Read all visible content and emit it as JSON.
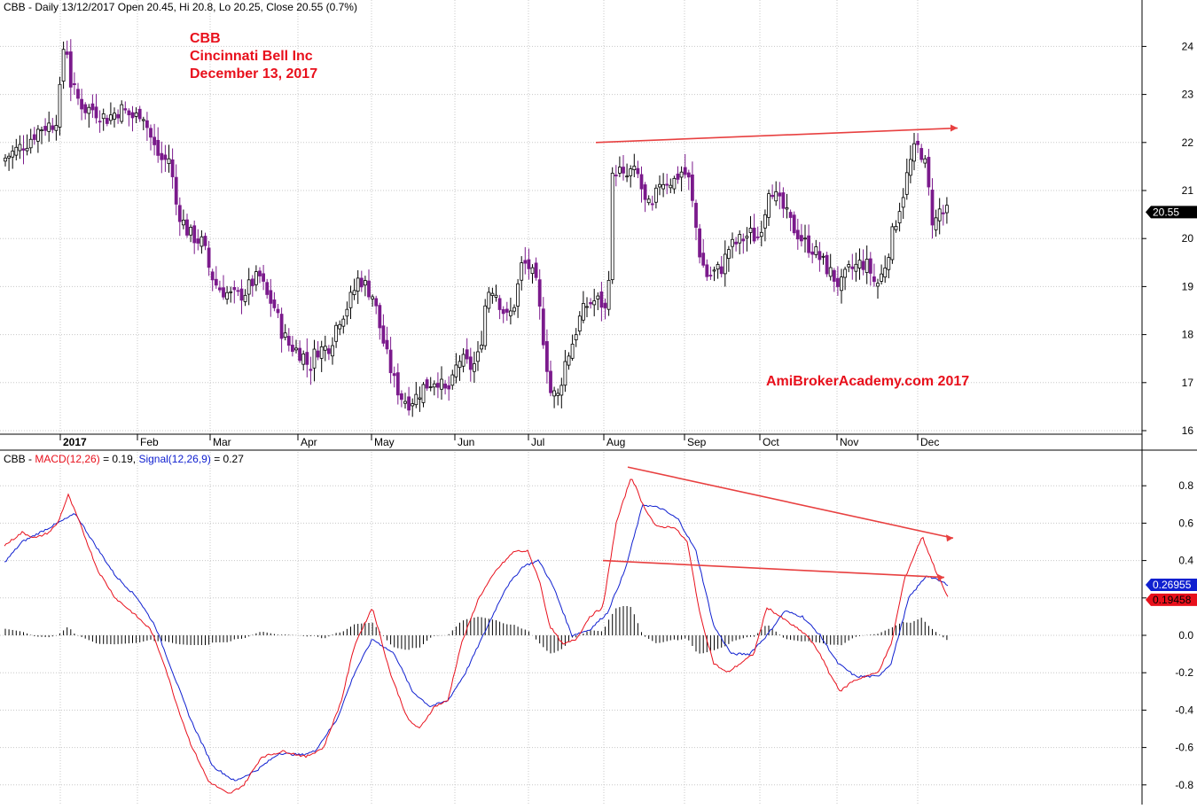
{
  "price_header": {
    "symbol": "CBB",
    "info": "Daily 13/12/2017 Open 20.45, Hi 20.8, Lo 20.25, Close 20.55 (0.7%)"
  },
  "title": {
    "line1": "CBB",
    "line2": "Cincinnati Bell Inc",
    "line3": "December 13, 2017"
  },
  "watermark": "AmiBrokerAcademy.com  2017",
  "macd_header": {
    "symbol": "CBB",
    "macd_label": "MACD(12,26)",
    "macd_value": " = 0.19,",
    "signal_label": "Signal(12,26,9)",
    "signal_value": " = 0.27"
  },
  "colors": {
    "up_candle": "#ffffff",
    "down_candle": "#7b1a8c",
    "macd_line": "#e8101c",
    "signal_line": "#1020d0",
    "histogram": "#000000",
    "trend_line": "#e84040",
    "grid": "#c8c8c8"
  },
  "chart_data": [
    {
      "type": "candlestick",
      "x_axis": {
        "year_label": "2017",
        "months": [
          "Feb",
          "Mar",
          "Apr",
          "May",
          "Jun",
          "Jul",
          "Aug",
          "Sep",
          "Oct",
          "Nov",
          "Dec"
        ]
      },
      "y_ticks": [
        16,
        17,
        18,
        19,
        20,
        21,
        22,
        23,
        24
      ],
      "ylim": [
        15.8,
        24.9
      ],
      "last_price_label": "20.55",
      "last_close": 20.55,
      "grid": true,
      "close_path": [
        [
          0,
          21.6
        ],
        [
          15,
          21.8
        ],
        [
          30,
          22.0
        ],
        [
          45,
          22.3
        ],
        [
          60,
          22.4
        ],
        [
          66,
          22.6
        ],
        [
          70,
          23.8
        ],
        [
          74,
          24.2
        ],
        [
          80,
          23.2
        ],
        [
          88,
          22.9
        ],
        [
          96,
          22.7
        ],
        [
          104,
          22.7
        ],
        [
          112,
          22.6
        ],
        [
          120,
          22.5
        ],
        [
          128,
          22.6
        ],
        [
          136,
          22.7
        ],
        [
          144,
          22.6
        ],
        [
          152,
          22.5
        ],
        [
          160,
          22.7
        ],
        [
          168,
          22.2
        ],
        [
          176,
          21.8
        ],
        [
          184,
          21.6
        ],
        [
          192,
          21.7
        ],
        [
          197,
          20.8
        ],
        [
          205,
          20.4
        ],
        [
          213,
          20.1
        ],
        [
          221,
          20.0
        ],
        [
          229,
          19.9
        ],
        [
          237,
          19.3
        ],
        [
          245,
          19.0
        ],
        [
          253,
          18.9
        ],
        [
          261,
          18.8
        ],
        [
          269,
          18.8
        ],
        [
          277,
          18.9
        ],
        [
          285,
          19.1
        ],
        [
          293,
          19.2
        ],
        [
          301,
          18.8
        ],
        [
          309,
          18.6
        ],
        [
          317,
          18.1
        ],
        [
          325,
          17.8
        ],
        [
          333,
          17.7
        ],
        [
          341,
          17.6
        ],
        [
          349,
          17.3
        ],
        [
          357,
          17.7
        ],
        [
          365,
          17.7
        ],
        [
          373,
          17.8
        ],
        [
          381,
          18.3
        ],
        [
          389,
          18.5
        ],
        [
          397,
          18.8
        ],
        [
          405,
          19.2
        ],
        [
          413,
          19.0
        ],
        [
          421,
          18.8
        ],
        [
          429,
          18.1
        ],
        [
          437,
          17.5
        ],
        [
          445,
          17.0
        ],
        [
          453,
          16.7
        ],
        [
          461,
          16.6
        ],
        [
          469,
          16.7
        ],
        [
          477,
          16.9
        ],
        [
          485,
          17.0
        ],
        [
          493,
          17.1
        ],
        [
          501,
          16.8
        ],
        [
          509,
          16.9
        ],
        [
          517,
          17.5
        ],
        [
          525,
          17.4
        ],
        [
          533,
          17.3
        ],
        [
          541,
          17.6
        ],
        [
          549,
          18.9
        ],
        [
          557,
          19.0
        ],
        [
          565,
          18.6
        ],
        [
          573,
          18.3
        ],
        [
          581,
          18.7
        ],
        [
          589,
          19.5
        ],
        [
          597,
          19.4
        ],
        [
          605,
          19.0
        ],
        [
          613,
          17.9
        ],
        [
          621,
          16.8
        ],
        [
          629,
          16.7
        ],
        [
          637,
          17.4
        ],
        [
          645,
          17.8
        ],
        [
          653,
          18.3
        ],
        [
          661,
          18.6
        ],
        [
          669,
          18.7
        ],
        [
          677,
          18.7
        ],
        [
          685,
          18.4
        ],
        [
          690,
          21.2
        ],
        [
          696,
          21.5
        ],
        [
          704,
          21.2
        ],
        [
          712,
          21.4
        ],
        [
          720,
          21.3
        ],
        [
          728,
          20.7
        ],
        [
          736,
          20.6
        ],
        [
          744,
          21.2
        ],
        [
          752,
          21.2
        ],
        [
          760,
          21.2
        ],
        [
          768,
          21.4
        ],
        [
          776,
          21.3
        ],
        [
          782,
          20.6
        ],
        [
          790,
          19.6
        ],
        [
          798,
          19.2
        ],
        [
          806,
          19.3
        ],
        [
          814,
          19.4
        ],
        [
          822,
          19.8
        ],
        [
          830,
          19.9
        ],
        [
          838,
          20.0
        ],
        [
          846,
          20.1
        ],
        [
          854,
          20.0
        ],
        [
          862,
          20.5
        ],
        [
          868,
          21.2
        ],
        [
          876,
          20.8
        ],
        [
          884,
          20.6
        ],
        [
          892,
          20.3
        ],
        [
          900,
          20.1
        ],
        [
          908,
          19.9
        ],
        [
          916,
          19.8
        ],
        [
          924,
          19.6
        ],
        [
          932,
          19.4
        ],
        [
          940,
          19.2
        ],
        [
          948,
          19.0
        ],
        [
          956,
          19.3
        ],
        [
          964,
          19.4
        ],
        [
          972,
          19.5
        ],
        [
          980,
          19.4
        ],
        [
          988,
          19.0
        ],
        [
          996,
          19.3
        ],
        [
          1004,
          19.9
        ],
        [
          1012,
          20.5
        ],
        [
          1018,
          20.9
        ],
        [
          1024,
          21.4
        ],
        [
          1030,
          21.8
        ],
        [
          1036,
          21.9
        ],
        [
          1042,
          21.7
        ],
        [
          1048,
          20.9
        ],
        [
          1053,
          20.2
        ],
        [
          1059,
          20.6
        ],
        [
          1065,
          20.5
        ],
        [
          1070,
          20.55
        ]
      ],
      "trend_line": {
        "from": [
          672,
          22.0
        ],
        "to": [
          1080,
          22.3
        ]
      }
    },
    {
      "type": "line",
      "title": "MACD(12,26)",
      "y_ticks": [
        -0.8,
        -0.6,
        -0.4,
        -0.2,
        0.0,
        0.2,
        0.4,
        0.6,
        0.8
      ],
      "ylim": [
        -0.88,
        0.92
      ],
      "series": [
        {
          "name": "MACD(12,26)",
          "last_label": "0.19458",
          "last_value": 0.19,
          "path": [
            [
              5,
              0.48
            ],
            [
              25,
              0.55
            ],
            [
              40,
              0.52
            ],
            [
              55,
              0.55
            ],
            [
              65,
              0.6
            ],
            [
              77,
              0.75
            ],
            [
              90,
              0.6
            ],
            [
              110,
              0.35
            ],
            [
              130,
              0.2
            ],
            [
              150,
              0.12
            ],
            [
              170,
              0.03
            ],
            [
              185,
              -0.15
            ],
            [
              200,
              -0.38
            ],
            [
              215,
              -0.58
            ],
            [
              235,
              -0.78
            ],
            [
              258,
              -0.85
            ],
            [
              275,
              -0.8
            ],
            [
              295,
              -0.65
            ],
            [
              320,
              -0.62
            ],
            [
              345,
              -0.65
            ],
            [
              365,
              -0.6
            ],
            [
              385,
              -0.35
            ],
            [
              400,
              -0.05
            ],
            [
              420,
              0.15
            ],
            [
              440,
              -0.2
            ],
            [
              460,
              -0.45
            ],
            [
              473,
              -0.5
            ],
            [
              490,
              -0.38
            ],
            [
              505,
              -0.35
            ],
            [
              520,
              -0.05
            ],
            [
              540,
              0.2
            ],
            [
              560,
              0.35
            ],
            [
              580,
              0.45
            ],
            [
              595,
              0.45
            ],
            [
              608,
              0.3
            ],
            [
              620,
              0.05
            ],
            [
              635,
              -0.05
            ],
            [
              650,
              -0.02
            ],
            [
              665,
              0.1
            ],
            [
              680,
              0.15
            ],
            [
              695,
              0.6
            ],
            [
              712,
              0.85
            ],
            [
              725,
              0.7
            ],
            [
              740,
              0.58
            ],
            [
              760,
              0.58
            ],
            [
              775,
              0.5
            ],
            [
              790,
              0.1
            ],
            [
              805,
              -0.15
            ],
            [
              820,
              -0.2
            ],
            [
              835,
              -0.15
            ],
            [
              850,
              -0.1
            ],
            [
              865,
              0.15
            ],
            [
              880,
              0.1
            ],
            [
              895,
              0.05
            ],
            [
              910,
              0.0
            ],
            [
              925,
              -0.1
            ],
            [
              935,
              -0.2
            ],
            [
              948,
              -0.3
            ],
            [
              960,
              -0.25
            ],
            [
              975,
              -0.22
            ],
            [
              990,
              -0.2
            ],
            [
              1005,
              -0.05
            ],
            [
              1020,
              0.3
            ],
            [
              1040,
              0.53
            ],
            [
              1055,
              0.35
            ],
            [
              1070,
              0.19
            ]
          ]
        },
        {
          "name": "Signal(12,26,9)",
          "last_label": "0.26955",
          "last_value": 0.27,
          "path": [
            [
              5,
              0.39
            ],
            [
              25,
              0.5
            ],
            [
              45,
              0.55
            ],
            [
              65,
              0.6
            ],
            [
              85,
              0.65
            ],
            [
              105,
              0.5
            ],
            [
              130,
              0.32
            ],
            [
              155,
              0.2
            ],
            [
              175,
              0.05
            ],
            [
              195,
              -0.2
            ],
            [
              215,
              -0.45
            ],
            [
              240,
              -0.7
            ],
            [
              265,
              -0.78
            ],
            [
              290,
              -0.72
            ],
            [
              315,
              -0.63
            ],
            [
              340,
              -0.64
            ],
            [
              355,
              -0.62
            ],
            [
              380,
              -0.45
            ],
            [
              400,
              -0.2
            ],
            [
              420,
              -0.02
            ],
            [
              445,
              -0.1
            ],
            [
              465,
              -0.3
            ],
            [
              485,
              -0.38
            ],
            [
              505,
              -0.35
            ],
            [
              525,
              -0.2
            ],
            [
              545,
              0.0
            ],
            [
              570,
              0.25
            ],
            [
              590,
              0.37
            ],
            [
              608,
              0.4
            ],
            [
              625,
              0.25
            ],
            [
              645,
              0.0
            ],
            [
              665,
              0.03
            ],
            [
              685,
              0.12
            ],
            [
              705,
              0.35
            ],
            [
              725,
              0.7
            ],
            [
              745,
              0.68
            ],
            [
              765,
              0.62
            ],
            [
              785,
              0.45
            ],
            [
              805,
              0.05
            ],
            [
              825,
              -0.1
            ],
            [
              845,
              -0.1
            ],
            [
              865,
              0.0
            ],
            [
              885,
              0.13
            ],
            [
              905,
              0.1
            ],
            [
              925,
              0.0
            ],
            [
              945,
              -0.15
            ],
            [
              965,
              -0.22
            ],
            [
              990,
              -0.22
            ],
            [
              1005,
              -0.15
            ],
            [
              1025,
              0.2
            ],
            [
              1045,
              0.32
            ],
            [
              1070,
              0.27
            ]
          ]
        }
      ],
      "histogram_scale": 0.4,
      "trend_lines": [
        {
          "from": [
            708,
            0.9
          ],
          "to": [
            1075,
            0.52
          ]
        },
        {
          "from": [
            680,
            0.4
          ],
          "to": [
            1065,
            0.31
          ]
        }
      ],
      "grid": true
    }
  ]
}
